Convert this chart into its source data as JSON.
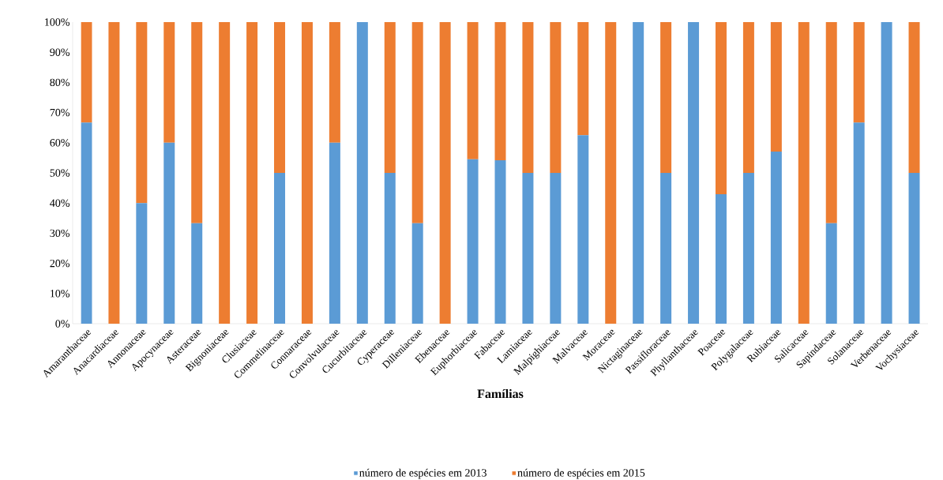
{
  "chart_data": {
    "type": "bar",
    "stacked": true,
    "xlabel": "Famílias",
    "categories": [
      "Amaranthaceae",
      "Anacardiaceae",
      "Annonaceae",
      "Apocynaceae",
      "Asteraceae",
      "Bignoniaceae",
      "Clusiaceae",
      "Commelinaceae",
      "Connaraceae",
      "Convolvulaceae",
      "Cucurbitaceae",
      "Cyperaceae",
      "Dilleniaceae",
      "Ebenaceae",
      "Euphorbiaceae",
      "Fabaceae",
      "Lamiaceae",
      "Malpighiaceae",
      "Malvaceae",
      "Moraceae",
      "Nictaginaceae",
      "Passifloraceae",
      "Phyllanthaceae",
      "Poaceae",
      "Polygalaceae",
      "Rubiaceae",
      "Salicaceae",
      "Sapindaceae",
      "Solanaceae",
      "Verbenaceae",
      "Vochysiaceae"
    ],
    "series": [
      {
        "name": "número de espécies em 2013",
        "color": "#5b9bd5",
        "values": [
          66.7,
          0,
          40,
          60,
          33.3,
          0,
          0,
          50,
          0,
          60,
          100,
          50,
          33.3,
          0,
          54.5,
          54.2,
          50,
          50,
          62.5,
          0,
          100,
          50,
          100,
          42.9,
          50,
          57.1,
          0,
          33.3,
          66.7,
          100,
          50
        ]
      },
      {
        "name": "número de espécies em 2015",
        "color": "#ed7d31",
        "values": [
          33.3,
          100,
          60,
          40,
          66.7,
          100,
          100,
          50,
          100,
          40,
          0,
          50,
          66.7,
          100,
          45.5,
          45.8,
          50,
          50,
          37.5,
          100,
          0,
          50,
          0,
          57.1,
          50,
          42.9,
          100,
          66.7,
          33.3,
          0,
          50
        ]
      }
    ],
    "ylim": [
      0,
      100
    ],
    "yticks": [
      {
        "value": 0,
        "label": "0%"
      },
      {
        "value": 10,
        "label": "10%"
      },
      {
        "value": 20,
        "label": "20%"
      },
      {
        "value": 30,
        "label": "30%"
      },
      {
        "value": 40,
        "label": "40%"
      },
      {
        "value": 50,
        "label": "50%"
      },
      {
        "value": 60,
        "label": "60%"
      },
      {
        "value": 70,
        "label": "70%"
      },
      {
        "value": 80,
        "label": "80%"
      },
      {
        "value": 90,
        "label": "90%"
      },
      {
        "value": 100,
        "label": "100%"
      }
    ],
    "legend": "bottom"
  }
}
